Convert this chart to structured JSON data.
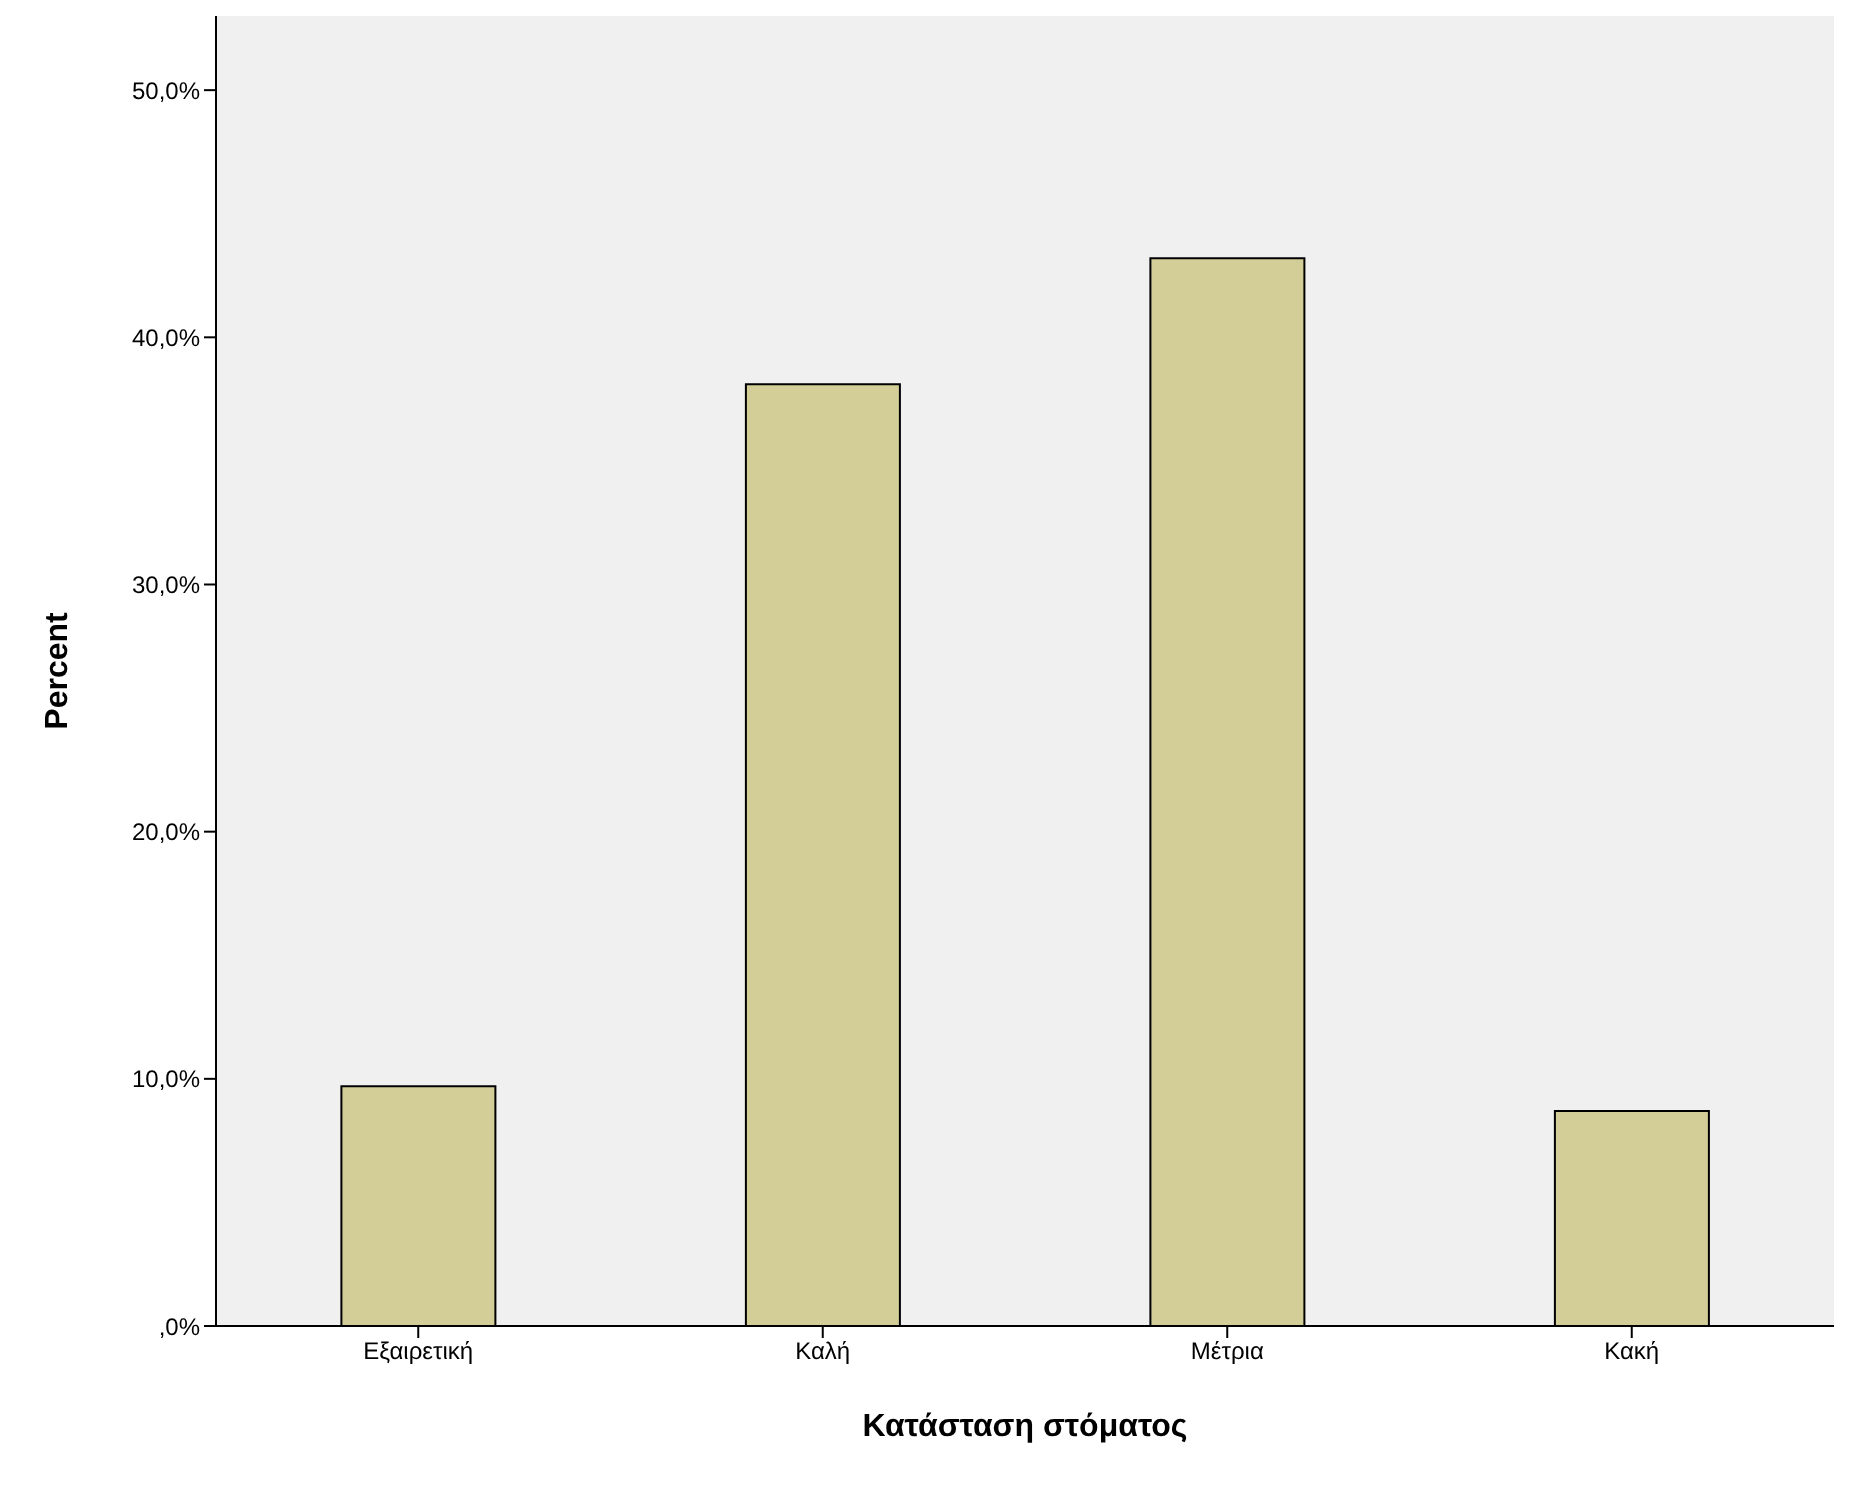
{
  "chart_data": {
    "type": "bar",
    "xlabel": "Κατάσταση στόματος",
    "ylabel": "Percent",
    "categories": [
      "Εξαιρετική",
      "Καλή",
      "Μέτρια",
      "Κακή"
    ],
    "values": [
      9.7,
      38.1,
      43.2,
      8.7
    ],
    "color": "#d3ce97",
    "ylim": [
      0,
      53
    ],
    "yticks": [
      {
        "value": 0,
        "label": ",0%"
      },
      {
        "value": 10,
        "label": "10,0%"
      },
      {
        "value": 20,
        "label": "20,0%"
      },
      {
        "value": 30,
        "label": "30,0%"
      },
      {
        "value": 40,
        "label": "40,0%"
      },
      {
        "value": 50,
        "label": "50,0%"
      }
    ],
    "grid": false,
    "legend": false
  }
}
